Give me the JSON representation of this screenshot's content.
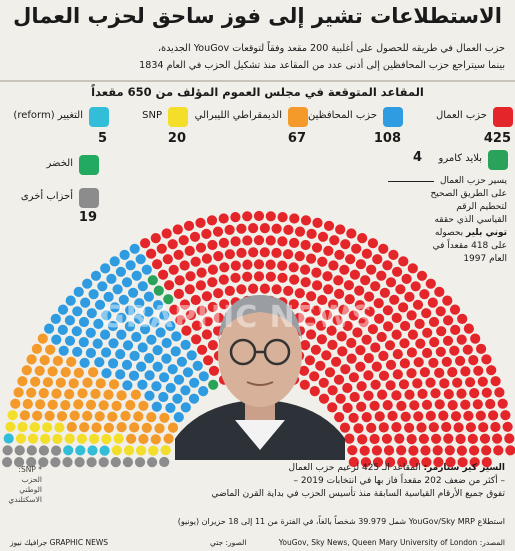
{
  "header": {
    "title": "الاستطلاعات تشير إلى فوز ساحق لحزب العمال",
    "subtitle_line1": "حزب العمال في طريقه للحصول على أغلبية 200 مقعد وفقاً لتوقعات YouGov الجديدة،",
    "subtitle_line2": "بينما سيتراجع حزب المحافظين إلى أدنى عدد من المقاعد منذ تشكيل الحزب في العام 1834"
  },
  "chart_data": {
    "type": "parliament",
    "title": "المقاعد المتوقعة في مجلس العموم المؤلف من 650 مقعداً",
    "total_seats": 650,
    "series": [
      {
        "name": "حزب العمال",
        "value": 425,
        "color": "#e4262a"
      },
      {
        "name": "حزب المحافظين",
        "value": 108,
        "color": "#2f9be0"
      },
      {
        "name": "الديمقراطي الليبرالي",
        "value": 67,
        "color": "#f39a2b"
      },
      {
        "name": "SNP",
        "value": 20,
        "color": "#f3de2a"
      },
      {
        "name": "التغيير (reform)",
        "value": 5,
        "color": "#32bdd8"
      },
      {
        "name": "بلايد كامرو",
        "value": 4,
        "color": "#2aa25a"
      },
      {
        "name": "الخضر",
        "value": 0,
        "color": "#22aa60"
      },
      {
        "name": "أحزاب أخرى",
        "value": 19,
        "color": "#8c8c8c"
      }
    ]
  },
  "annotation": {
    "line1": "يسير حزب العمال على الطريق الصحيح لتحطيم الرقم القياسي الذي حققه",
    "bold": "توني بلير",
    "line2": "بحصوله على 418 مقعداً في العام 1997"
  },
  "caption": {
    "bold": "السير كير ستارمر:",
    "line1": "المقاعد الـ 425 لزعيم حزب العمال",
    "line2": "– أكثر من ضعف 202 مقعداً فاز بها في انتخابات 2019 –",
    "line3": "تفوق جميع الأرقام القياسية السابقة منذ تأسيس الحزب في بداية القرن الماضي"
  },
  "note": "* SNP: الحزب الوطني الاسكتلندي",
  "source": "استطلاع YouGov/Sky MRP شمل 39.979 شخصاً بالغاً، في الفترة من 11 إلى 18 حزيران (يونيو)",
  "footer": {
    "source": "المصدر: YouGov, Sky News, Queen Mary University of London",
    "photo": "الصور: جتي",
    "brand": "جرافيك نيوز GRAPHIC NEWS"
  },
  "watermark": "GRAPHIC NEWS"
}
